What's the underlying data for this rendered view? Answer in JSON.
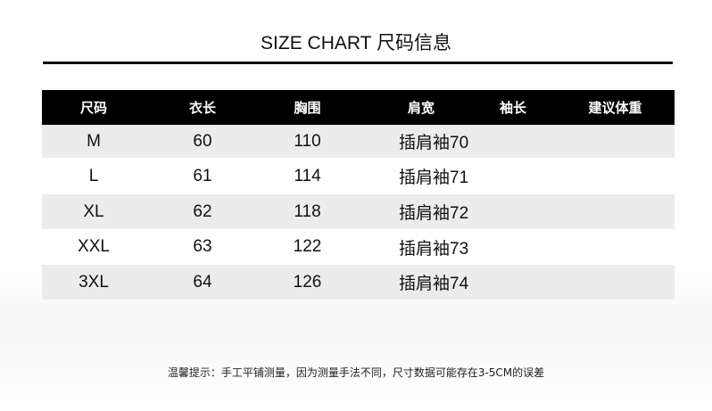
{
  "title": "SIZE CHART 尺码信息",
  "headers": [
    "尺码",
    "衣长",
    "胸围",
    "肩宽",
    "袖长",
    "建议体重"
  ],
  "rows": [
    [
      "M",
      "60",
      "110",
      "插肩袖70",
      "",
      ""
    ],
    [
      "L",
      "61",
      "114",
      "插肩袖71",
      "",
      ""
    ],
    [
      "XL",
      "62",
      "118",
      "插肩袖72",
      "",
      ""
    ],
    [
      "XXL",
      "63",
      "122",
      "插肩袖73",
      "",
      ""
    ],
    [
      "3XL",
      "64",
      "126",
      "插肩袖74",
      "",
      ""
    ]
  ],
  "footnote": "温馨提示：手工平铺测量，因为测量手法不同，尺寸数据可能存在3-5CM的误差",
  "colors": {
    "header_bg": "#000000",
    "stripe": "#ececec"
  }
}
